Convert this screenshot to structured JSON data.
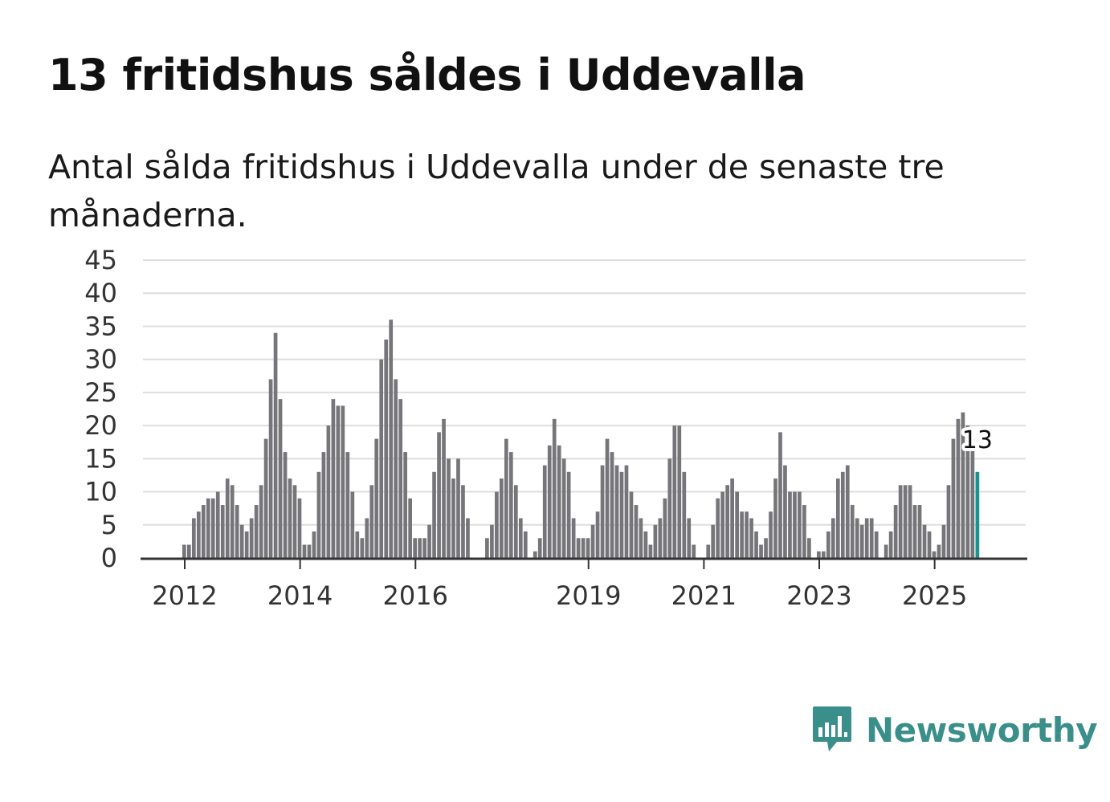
{
  "title": "13 fritidshus såldes i Uddevalla",
  "subtitle": "Antal sålda fritidshus i Uddevalla under de senaste tre månaderna.",
  "brand": {
    "name": "Newsworthy",
    "icon": "newsworthy-bar-chart-icon",
    "color": "#3a8f8b"
  },
  "colors": {
    "bar": "#767579",
    "highlight": "#17948f",
    "grid": "#dddddd",
    "axis": "#333333"
  },
  "chart_data": {
    "type": "bar",
    "title": "13 fritidshus såldes i Uddevalla",
    "xlabel": "",
    "ylabel": "",
    "ylim": [
      0,
      45
    ],
    "yticks": [
      0,
      5,
      10,
      15,
      20,
      25,
      30,
      35,
      40,
      45
    ],
    "x_start": {
      "year": 2011,
      "month": 1
    },
    "x_tick_labels": [
      {
        "label": "2012",
        "year": 2012
      },
      {
        "label": "2014",
        "year": 2014
      },
      {
        "label": "2016",
        "year": 2016
      },
      {
        "label": "2019",
        "year": 2019
      },
      {
        "label": "2021",
        "year": 2021
      },
      {
        "label": "2023",
        "year": 2023
      },
      {
        "label": "2025",
        "year": 2025
      }
    ],
    "grid": true,
    "legend": "none",
    "values": [
      0,
      0,
      0,
      0,
      0,
      0,
      0,
      0,
      0,
      0,
      0,
      0,
      2,
      2,
      6,
      7,
      8,
      9,
      9,
      10,
      8,
      12,
      11,
      8,
      5,
      4,
      6,
      8,
      11,
      18,
      27,
      34,
      24,
      16,
      12,
      11,
      9,
      2,
      2,
      4,
      13,
      16,
      20,
      24,
      23,
      23,
      16,
      10,
      4,
      3,
      6,
      11,
      18,
      30,
      33,
      36,
      27,
      24,
      16,
      9,
      3,
      3,
      3,
      5,
      13,
      19,
      21,
      15,
      12,
      15,
      11,
      6,
      0,
      0,
      0,
      3,
      5,
      10,
      12,
      18,
      16,
      11,
      6,
      4,
      0,
      1,
      3,
      14,
      17,
      21,
      17,
      15,
      13,
      6,
      3,
      3,
      3,
      5,
      7,
      14,
      18,
      16,
      14,
      13,
      14,
      10,
      8,
      6,
      4,
      2,
      5,
      6,
      9,
      15,
      20,
      20,
      13,
      6,
      2,
      0,
      0,
      2,
      5,
      9,
      10,
      11,
      12,
      10,
      7,
      7,
      6,
      4,
      2,
      3,
      7,
      12,
      19,
      14,
      10,
      10,
      10,
      8,
      3,
      0,
      1,
      1,
      4,
      6,
      12,
      13,
      14,
      8,
      6,
      5,
      6,
      6,
      4,
      0,
      2,
      4,
      8,
      11,
      11,
      11,
      8,
      8,
      5,
      4,
      1,
      2,
      5,
      11,
      18,
      21,
      22,
      20,
      18,
      13
    ],
    "highlight_index": 177,
    "annotations": [
      {
        "index": 177,
        "text": "13"
      }
    ]
  }
}
